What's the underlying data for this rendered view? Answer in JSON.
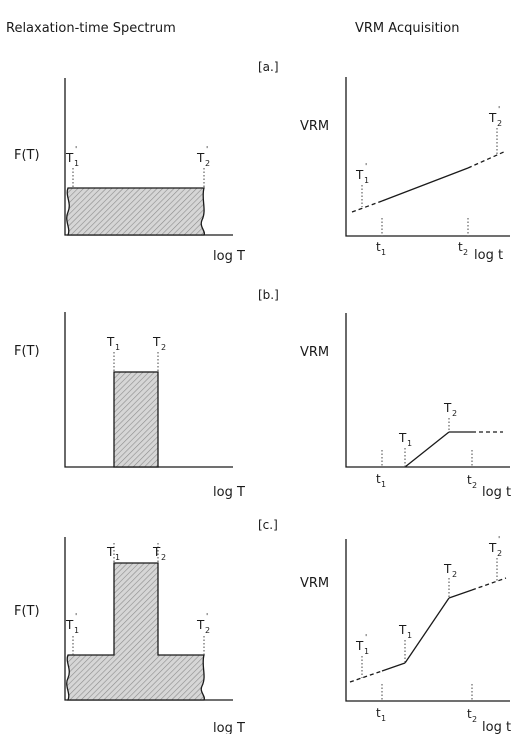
{
  "headers": {
    "left": "Relaxation-time  Spectrum",
    "right": "VRM  Acquisition"
  },
  "labels": {
    "F": "F(T)",
    "VRM": "VRM",
    "logT": "log T",
    "logt": "log t",
    "T": "T",
    "t": "t",
    "one": "1",
    "two": "2",
    "prime": "'"
  },
  "panels": [
    {
      "tag": "[a.]"
    },
    {
      "tag": "[b.]"
    },
    {
      "tag": "[c.]"
    }
  ],
  "colors": {
    "ink": "#1a1a1a",
    "hatch": "#9a9a9a",
    "fill": "#d8d8d8"
  }
}
